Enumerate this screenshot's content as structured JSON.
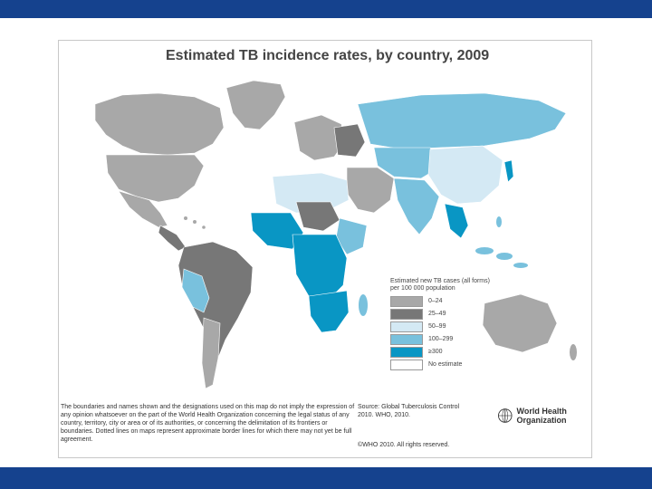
{
  "slide": {
    "band_color": "#15428e"
  },
  "map": {
    "title": "Estimated TB incidence rates, by country, 2009",
    "legend": {
      "title": "Estimated new TB cases (all forms) per 100 000 population",
      "items": [
        {
          "label": "0–24",
          "color": "#a8a8a8"
        },
        {
          "label": "25–49",
          "color": "#777777"
        },
        {
          "label": "50–99",
          "color": "#d4e9f4"
        },
        {
          "label": "100–299",
          "color": "#79c1dd"
        },
        {
          "label": "≥300",
          "color": "#0996c4"
        },
        {
          "label": "No estimate",
          "color": "#ffffff"
        }
      ]
    },
    "disclaimer": "The boundaries and names shown and the designations used on this map do not imply the expression of any opinion whatsoever on the part of the World Health Organization concerning the legal status of any country, territory, city or area or of its authorities, or concerning the delimitation of its frontiers or boundaries. Dotted lines on maps represent approximate border lines for which there may not yet be full agreement.",
    "source": "Source: Global Tuberculosis Control 2010. WHO, 2010.",
    "copyright": "©WHO 2010. All rights reserved.",
    "logo_text": "World Health Organization"
  }
}
